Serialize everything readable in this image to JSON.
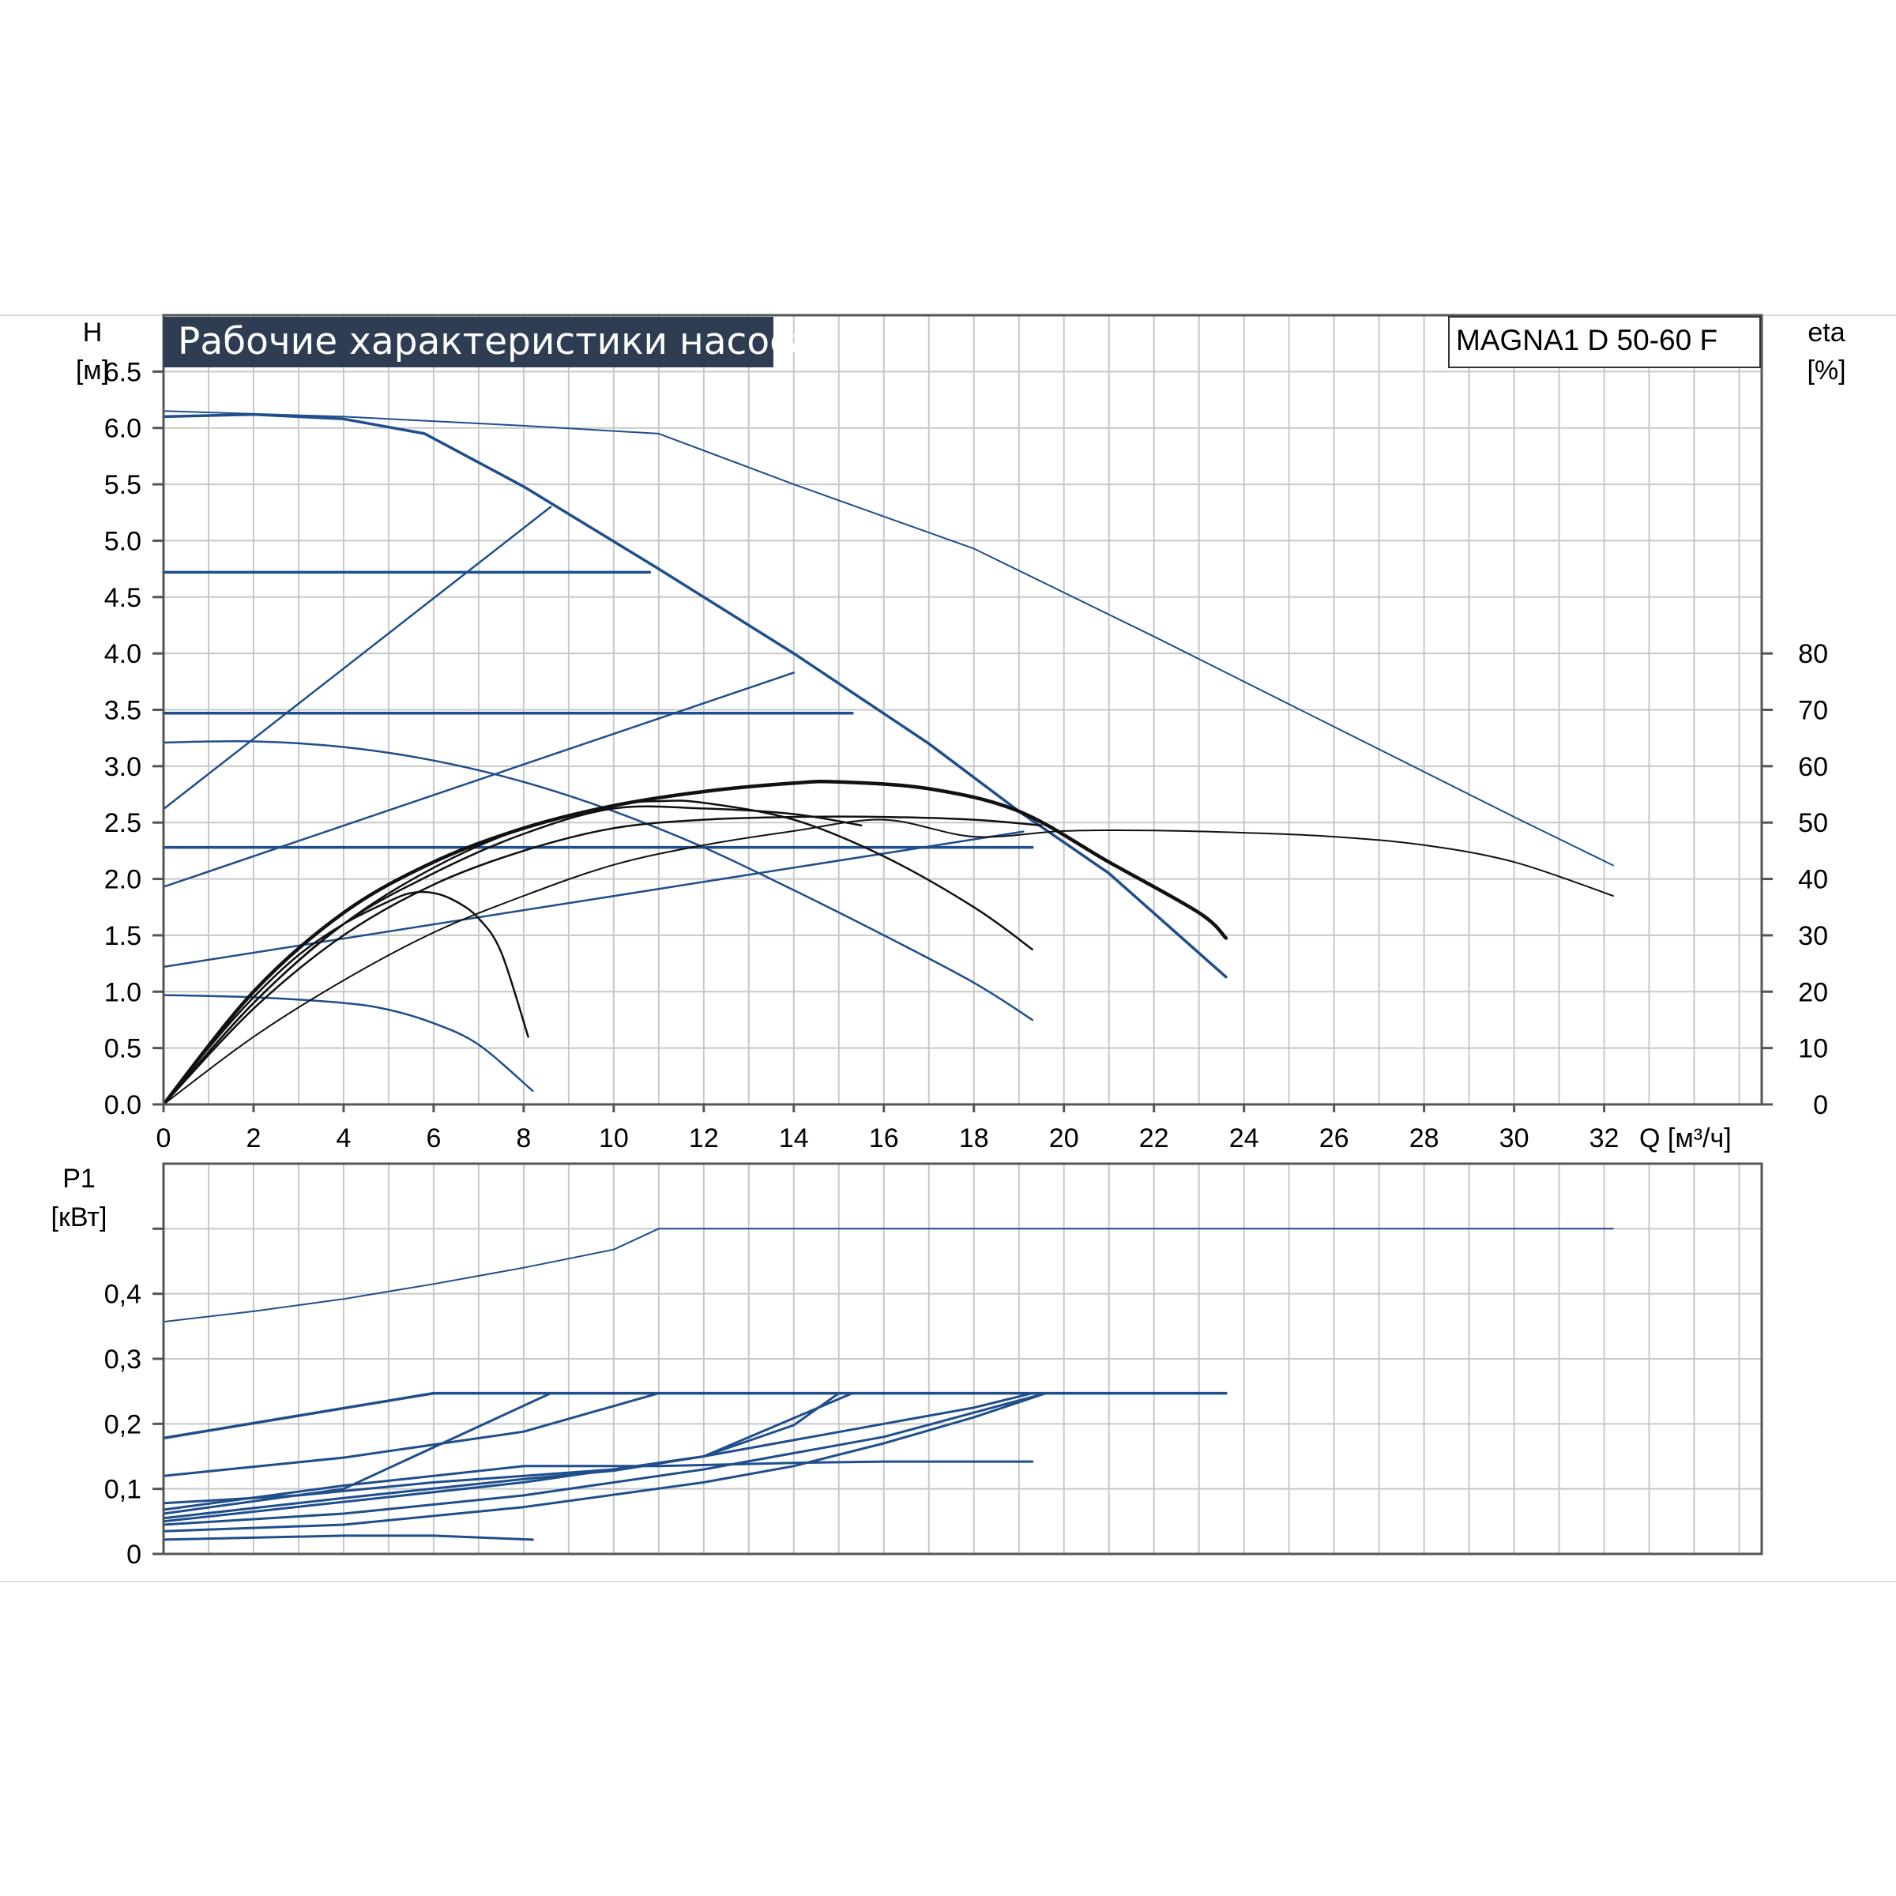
{
  "chart_data": [
    {
      "type": "line",
      "title": "Рабочие характеристики насоса",
      "model": "MAGNA1 D 50-60 F",
      "ylabel": "H",
      "ylabel_unit": "[м]",
      "y2label": "eta",
      "y2label_unit": "[%]",
      "xlabel": "Q [м³/ч]",
      "xlim": [
        0,
        35.5
      ],
      "ylim": [
        0,
        7.0
      ],
      "y2lim": [
        0,
        140
      ],
      "grid": true,
      "x_ticks": [
        "0",
        "2",
        "4",
        "6",
        "8",
        "10",
        "12",
        "14",
        "16",
        "18",
        "20",
        "22",
        "24",
        "26",
        "28",
        "30",
        "32"
      ],
      "x_tick_values": [
        0,
        2,
        4,
        6,
        8,
        10,
        12,
        14,
        16,
        18,
        20,
        22,
        24,
        26,
        28,
        30,
        32
      ],
      "y_ticks": [
        "0.0",
        "0.5",
        "1.0",
        "1.5",
        "2.0",
        "2.5",
        "3.0",
        "3.5",
        "4.0",
        "4.5",
        "5.0",
        "5.5",
        "6.0",
        "6.5"
      ],
      "y_tick_values": [
        0,
        0.5,
        1.0,
        1.5,
        2.0,
        2.5,
        3.0,
        3.5,
        4.0,
        4.5,
        5.0,
        5.5,
        6.0,
        6.5
      ],
      "y2_ticks": [
        "0",
        "10",
        "20",
        "30",
        "40",
        "50",
        "60",
        "70",
        "80"
      ],
      "y2_tick_values": [
        0,
        10,
        20,
        30,
        40,
        50,
        60,
        70,
        80
      ],
      "colors": {
        "blue": "#1f4e8c",
        "black": "#111111",
        "grid": "#c8c8c8",
        "title_bg": "#2e3d52"
      },
      "series": [
        {
          "color": "#1f4e8c",
          "width": 2,
          "points": [
            [
              0,
              6.15
            ],
            [
              4,
              6.1
            ],
            [
              8,
              6.02
            ],
            [
              11,
              5.95
            ],
            [
              14,
              5.5
            ],
            [
              18,
              4.93
            ],
            [
              22,
              4.15
            ],
            [
              26,
              3.35
            ],
            [
              30,
              2.55
            ],
            [
              32.2,
              2.12
            ]
          ]
        },
        {
          "color": "#1f4e8c",
          "width": 3.5,
          "points": [
            [
              0,
              6.1
            ],
            [
              2,
              6.12
            ],
            [
              4,
              6.08
            ],
            [
              5.8,
              5.95
            ],
            [
              8,
              5.48
            ],
            [
              11,
              4.75
            ],
            [
              14,
              4.0
            ],
            [
              17,
              3.2
            ],
            [
              19,
              2.6
            ],
            [
              21,
              2.05
            ],
            [
              23.6,
              1.13
            ]
          ]
        },
        {
          "color": "#1f4e8c",
          "width": 3.5,
          "points": [
            [
              0,
              4.72
            ],
            [
              10.8,
              4.72
            ]
          ]
        },
        {
          "color": "#1f4e8c",
          "width": 3.5,
          "points": [
            [
              0,
              3.47
            ],
            [
              15.3,
              3.47
            ]
          ]
        },
        {
          "color": "#1f4e8c",
          "width": 3.5,
          "points": [
            [
              0,
              2.28
            ],
            [
              19.3,
              2.28
            ]
          ]
        },
        {
          "color": "#1f4e8c",
          "width": 2.5,
          "points": [
            [
              0,
              2.62
            ],
            [
              8.6,
              5.3
            ]
          ]
        },
        {
          "color": "#1f4e8c",
          "width": 2.5,
          "points": [
            [
              0,
              1.93
            ],
            [
              14,
              3.83
            ]
          ]
        },
        {
          "color": "#1f4e8c",
          "width": 2.5,
          "points": [
            [
              0,
              1.22
            ],
            [
              19.1,
              2.42
            ]
          ]
        },
        {
          "color": "#1f4e8c",
          "width": 2.5,
          "points": [
            [
              0,
              3.21
            ],
            [
              2,
              3.22
            ],
            [
              4,
              3.17
            ],
            [
              6,
              3.05
            ],
            [
              8,
              2.86
            ],
            [
              10,
              2.6
            ],
            [
              12,
              2.28
            ],
            [
              14,
              1.9
            ],
            [
              16,
              1.5
            ],
            [
              18,
              1.08
            ],
            [
              19.3,
              0.75
            ]
          ]
        },
        {
          "color": "#1f4e8c",
          "width": 2.5,
          "points": [
            [
              0,
              0.97
            ],
            [
              2,
              0.95
            ],
            [
              4,
              0.9
            ],
            [
              5,
              0.84
            ],
            [
              6,
              0.72
            ],
            [
              7,
              0.53
            ],
            [
              8.2,
              0.12
            ]
          ]
        },
        {
          "color": "#111111",
          "width": 2,
          "points": [
            [
              0,
              0
            ],
            [
              2,
              12
            ],
            [
              4,
              22
            ],
            [
              6,
              30.5
            ],
            [
              8,
              37
            ],
            [
              10,
              42.5
            ],
            [
              12,
              46
            ],
            [
              14,
              48.5
            ],
            [
              16,
              50.5
            ],
            [
              18,
              47.5
            ],
            [
              20,
              48.5
            ],
            [
              22,
              48.6
            ],
            [
              24,
              48.2
            ],
            [
              26,
              47.5
            ],
            [
              28,
              46
            ],
            [
              30,
              43
            ],
            [
              32.2,
              37
            ]
          ]
        },
        {
          "color": "#111111",
          "width": 4.5,
          "points": [
            [
              0,
              0
            ],
            [
              2,
              20
            ],
            [
              4,
              34
            ],
            [
              6,
              43
            ],
            [
              8,
              49
            ],
            [
              10,
              53
            ],
            [
              12,
              55.5
            ],
            [
              14,
              57
            ],
            [
              15,
              57.2
            ],
            [
              17,
              56
            ],
            [
              19,
              52
            ],
            [
              21,
              43
            ],
            [
              23,
              34
            ],
            [
              23.6,
              29.5
            ]
          ]
        },
        {
          "color": "#111111",
          "width": 2.5,
          "points": [
            [
              0,
              0
            ],
            [
              2,
              17
            ],
            [
              4,
              30
            ],
            [
              6,
              39
            ],
            [
              8,
              45
            ],
            [
              10,
              49
            ],
            [
              12,
              50.5
            ],
            [
              14,
              51
            ],
            [
              16,
              51
            ],
            [
              18,
              50.5
            ],
            [
              19.5,
              49.5
            ]
          ]
        },
        {
          "color": "#111111",
          "width": 2.5,
          "points": [
            [
              0,
              0
            ],
            [
              2,
              18
            ],
            [
              4,
              32
            ],
            [
              6,
              41
            ],
            [
              8,
              48
            ],
            [
              10,
              52.5
            ],
            [
              12,
              52.5
            ],
            [
              14,
              51.5
            ],
            [
              15.5,
              49.5
            ]
          ]
        },
        {
          "color": "#111111",
          "width": 2.5,
          "points": [
            [
              0,
              0
            ],
            [
              2,
              18
            ],
            [
              4,
              32
            ],
            [
              6,
              42
            ],
            [
              8,
              49
            ],
            [
              10,
              53
            ],
            [
              11,
              53.8
            ],
            [
              12,
              53.5
            ],
            [
              14,
              50.5
            ],
            [
              16,
              44
            ],
            [
              18,
              35
            ],
            [
              19.3,
              27.5
            ]
          ]
        },
        {
          "color": "#111111",
          "width": 2.5,
          "points": [
            [
              0,
              0
            ],
            [
              1,
              10
            ],
            [
              2,
              19
            ],
            [
              3,
              26.5
            ],
            [
              4,
              32
            ],
            [
              5,
              36
            ],
            [
              5.5,
              37.5
            ],
            [
              6,
              37.5
            ],
            [
              6.5,
              36
            ],
            [
              7,
              33
            ],
            [
              7.5,
              27
            ],
            [
              8.1,
              12
            ]
          ]
        }
      ]
    },
    {
      "type": "line",
      "ylabel": "P1",
      "ylabel_unit": "[кВт]",
      "xlim": [
        0,
        35.5
      ],
      "ylim": [
        0,
        0.6
      ],
      "grid": true,
      "y_ticks": [
        "0",
        "0,1",
        "0,2",
        "0,3",
        "0,4"
      ],
      "y_tick_values": [
        0,
        0.1,
        0.2,
        0.3,
        0.4
      ],
      "series": [
        {
          "color": "#1f4e8c",
          "width": 2,
          "points": [
            [
              0,
              0.357
            ],
            [
              2,
              0.373
            ],
            [
              4,
              0.392
            ],
            [
              6,
              0.415
            ],
            [
              8,
              0.44
            ],
            [
              10,
              0.468
            ],
            [
              11,
              0.5
            ],
            [
              32.2,
              0.5
            ]
          ]
        },
        {
          "color": "#1f4e8c",
          "width": 3.5,
          "points": [
            [
              0,
              0.178
            ],
            [
              6,
              0.247
            ],
            [
              23.6,
              0.247
            ]
          ]
        },
        {
          "color": "#1f4e8c",
          "width": 3,
          "points": [
            [
              0,
              0.12
            ],
            [
              4,
              0.148
            ],
            [
              8,
              0.188
            ],
            [
              11,
              0.247
            ]
          ]
        },
        {
          "color": "#1f4e8c",
          "width": 3,
          "points": [
            [
              0,
              0.068
            ],
            [
              4,
              0.105
            ],
            [
              8,
              0.135
            ],
            [
              11,
              0.135
            ],
            [
              14,
              0.14
            ],
            [
              16,
              0.142
            ],
            [
              19.3,
              0.142
            ]
          ]
        },
        {
          "color": "#1f4e8c",
          "width": 3,
          "points": [
            [
              0,
              0.055
            ],
            [
              4,
              0.086
            ],
            [
              8,
              0.115
            ],
            [
              10,
              0.128
            ],
            [
              12,
              0.15
            ],
            [
              14,
              0.175
            ],
            [
              16,
              0.2
            ],
            [
              18,
              0.225
            ],
            [
              19.3,
              0.247
            ]
          ]
        },
        {
          "color": "#1f4e8c",
          "width": 3,
          "points": [
            [
              0,
              0.062
            ],
            [
              4,
              0.1
            ],
            [
              8.6,
              0.247
            ]
          ]
        },
        {
          "color": "#1f4e8c",
          "width": 3,
          "points": [
            [
              0,
              0.05
            ],
            [
              4,
              0.08
            ],
            [
              8,
              0.11
            ],
            [
              12,
              0.15
            ],
            [
              15.3,
              0.247
            ]
          ]
        },
        {
          "color": "#1f4e8c",
          "width": 3,
          "points": [
            [
              0,
              0.045
            ],
            [
              4,
              0.062
            ],
            [
              8,
              0.09
            ],
            [
              12,
              0.13
            ],
            [
              16,
              0.18
            ],
            [
              19.6,
              0.247
            ]
          ]
        },
        {
          "color": "#1f4e8c",
          "width": 3,
          "points": [
            [
              0,
              0.078
            ],
            [
              3,
              0.09
            ],
            [
              6,
              0.11
            ],
            [
              8,
              0.12
            ],
            [
              10,
              0.13
            ],
            [
              12,
              0.15
            ],
            [
              14,
              0.198
            ],
            [
              15,
              0.247
            ]
          ]
        },
        {
          "color": "#1f4e8c",
          "width": 3,
          "points": [
            [
              0,
              0.035
            ],
            [
              4,
              0.045
            ],
            [
              8,
              0.072
            ],
            [
              12,
              0.11
            ],
            [
              14,
              0.135
            ],
            [
              16,
              0.17
            ],
            [
              18,
              0.21
            ],
            [
              19.6,
              0.247
            ]
          ]
        },
        {
          "color": "#1f4e8c",
          "width": 3,
          "points": [
            [
              0,
              0.022
            ],
            [
              4,
              0.028
            ],
            [
              6,
              0.028
            ],
            [
              8.2,
              0.022
            ]
          ]
        }
      ]
    }
  ]
}
